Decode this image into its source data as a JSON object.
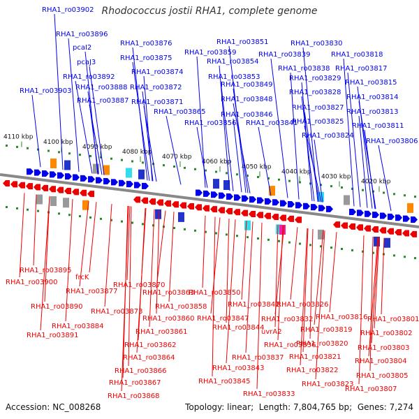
{
  "title": "Rhodococcus jostii RHA1, complete genome",
  "footer": {
    "accession_label": "Accession:",
    "accession": "NC_008268",
    "topology_label": "Topology:",
    "topology": "linear",
    "length_label": "Length:",
    "length": "7,804,765 bp",
    "genes_label": "Genes:",
    "genes": "7,274"
  },
  "colors": {
    "forward_strand": "#0000ee",
    "reverse_strand": "#ee0000",
    "backbone": "#888888",
    "tick": "#2a8a2a",
    "cog_blue": "#2233cc",
    "cog_orange": "#ff8800",
    "cog_cyan": "#33ddee",
    "cog_magenta": "#ee22aa",
    "cog_gray": "#999999"
  },
  "scale_ticks": [
    "4110 kbp",
    "4100 kbp",
    "4090 kbp",
    "4080 kbp",
    "4070 kbp",
    "4060 kbp",
    "4050 kbp",
    "4040 kbp",
    "4030 kbp",
    "4020 kbp"
  ],
  "forward_labels": [
    "RHA1_ro03902",
    "RHA1_ro03896",
    "pcaI2",
    "pcaJ3",
    "RHA1_ro03892",
    "RHA1_ro03903",
    "RHA1_ro03888",
    "RHA1_ro03887",
    "RHA1_ro03876",
    "RHA1_ro03875",
    "RHA1_ro03874",
    "RHA1_ro03872",
    "RHA1_ro03871",
    "RHA1_ro03865",
    "RHA1_ro03851",
    "RHA1_ro03859",
    "RHA1_ro03854",
    "RHA1_ro03853",
    "RHA1_ro03849",
    "RHA1_ro03848",
    "RHA1_ro03846",
    "RHA1_ro03856",
    "RHA1_ro03841",
    "RHA1_ro03830",
    "RHA1_ro03839",
    "RHA1_ro03838",
    "RHA1_ro03829",
    "RHA1_ro03828",
    "RHA1_ro03827",
    "RHA1_ro03825",
    "RHA1_ro03824",
    "RHA1_ro03818",
    "RHA1_ro03817",
    "RHA1_ro03815",
    "RHA1_ro03814",
    "RHA1_ro03813",
    "RHA1_ro03811",
    "RHA1_ro03806"
  ],
  "reverse_labels": [
    "RHA1_ro03895",
    "RHA1_ro03900",
    "frcK",
    "RHA1_ro03877",
    "RHA1_ro03870",
    "RHA1_ro03890",
    "RHA1_ro03873",
    "RHA1_ro03863",
    "RHA1_ro03850",
    "RHA1_ro03858",
    "RHA1_ro03884",
    "RHA1_ro03891",
    "RHA1_ro03860",
    "RHA1_ro03861",
    "RHA1_ro03862",
    "RHA1_ro03864",
    "RHA1_ro03866",
    "RHA1_ro03867",
    "RHA1_ro03868",
    "RHA1_ro03847",
    "RHA1_ro03844",
    "RHA1_ro03842",
    "RHA1_ro03826",
    "RHA1_ro03832",
    "uvrA2",
    "RHA1_ro03836",
    "RHA1_ro03837",
    "RHA1_ro03843",
    "RHA1_ro03845",
    "RHA1_ro03833",
    "RHA1_ro03816",
    "RHA1_ro03819",
    "RHA1_ro03820",
    "RHA1_ro03821",
    "RHA1_ro03822",
    "RHA1_ro03823",
    "RHA1_ro03801",
    "RHA1_ro03802",
    "RHA1_ro03803",
    "RHA1_ro03804",
    "RHA1_ro03805",
    "RHA1_ro03807"
  ]
}
